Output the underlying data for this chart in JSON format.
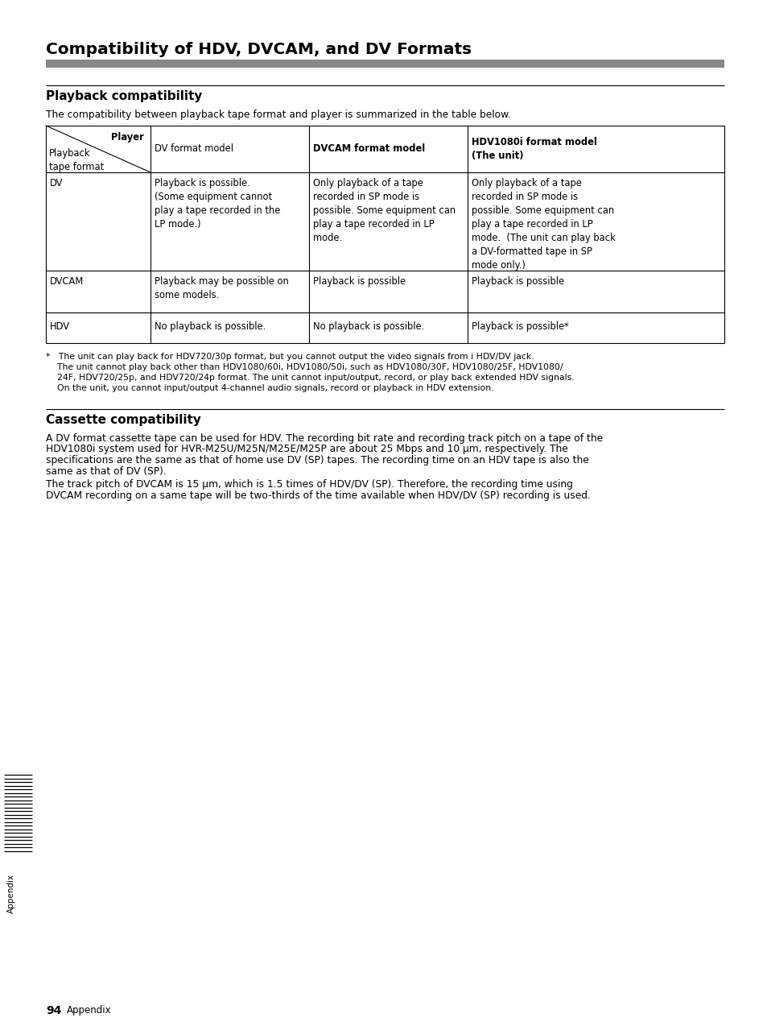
{
  "title": "Compatibility of HDV, DVCAM, and DV Formats",
  "title_fontsize": 14.5,
  "gray_bar_color": "#888888",
  "section1_heading": "Playback compatibility",
  "section1_intro": "The compatibility between playback tape format and player is summarized in the table below.",
  "table_header_col0_top": "Player",
  "table_header_col0_bottom1": "Playback",
  "table_header_col0_bottom2": "tape format",
  "table_header_col1": "DV format model",
  "table_header_col2": "DVCAM format model",
  "table_header_col3_line1": "HDV1080i format model",
  "table_header_col3_line2": "(The unit)",
  "table_row1_col0": "DV",
  "table_row1_col1": "Playback is possible.\n(Some equipment cannot\nplay a tape recorded in the\nLP mode.)",
  "table_row1_col2": "Only playback of a tape\nrecorded in SP mode is\npossible. Some equipment can\nplay a tape recorded in LP\nmode.",
  "table_row1_col3": "Only playback of a tape\nrecorded in SP mode is\npossible. Some equipment can\nplay a tape recorded in LP\nmode.  (The unit can play back\na DV-formatted tape in SP\nmode only.)",
  "table_row2_col0": "DVCAM",
  "table_row2_col1": "Playback may be possible on\nsome models.",
  "table_row2_col2": "Playback is possible",
  "table_row2_col3": "Playback is possible",
  "table_row3_col0": "HDV",
  "table_row3_col1": "No playback is possible.",
  "table_row3_col2": "No playback is possible.",
  "table_row3_col3": "Playback is possible*",
  "footnote_line1": "*   The unit can play back for HDV720/30p format, but you cannot output the video signals from i HDV/DV jack.",
  "footnote_line2": "    The unit cannot play back other than HDV1080/60i, HDV1080/50i, such as HDV1080/30F, HDV1080/25F, HDV1080/",
  "footnote_line3": "    24F, HDV720/25p, and HDV720/24p format. The unit cannot input/output, record, or play back extended HDV signals.",
  "footnote_line4": "    On the unit, you cannot input/output 4-channel audio signals, record or playback in HDV extension.",
  "section2_heading": "Cassette compatibility",
  "section2_para1_line1": "A DV format cassette tape can be used for HDV. The recording bit rate and recording track pitch on a tape of the",
  "section2_para1_line2": "HDV1080i system used for HVR-M25U/M25N/M25E/M25P are about 25 Mbps and 10 μm, respectively. The",
  "section2_para1_line3": "specifications are the same as that of home use DV (SP) tapes. The recording time on an HDV tape is also the",
  "section2_para1_line4": "same as that of DV (SP).",
  "section2_para2_line1": "The track pitch of DVCAM is 15 μm, which is 1.5 times of HDV/DV (SP). Therefore, the recording time using",
  "section2_para2_line2": "DVCAM recording on a same tape will be two-thirds of the time available when HDV/DV (SP) recording is used.",
  "page_number": "94",
  "page_label": "Appendix",
  "sidebar_label": "Appendix",
  "background_color": "#ffffff",
  "heading_fontsize": 11,
  "body_fontsize": 8.8,
  "table_fontsize": 8.3,
  "footnote_fontsize": 7.8
}
